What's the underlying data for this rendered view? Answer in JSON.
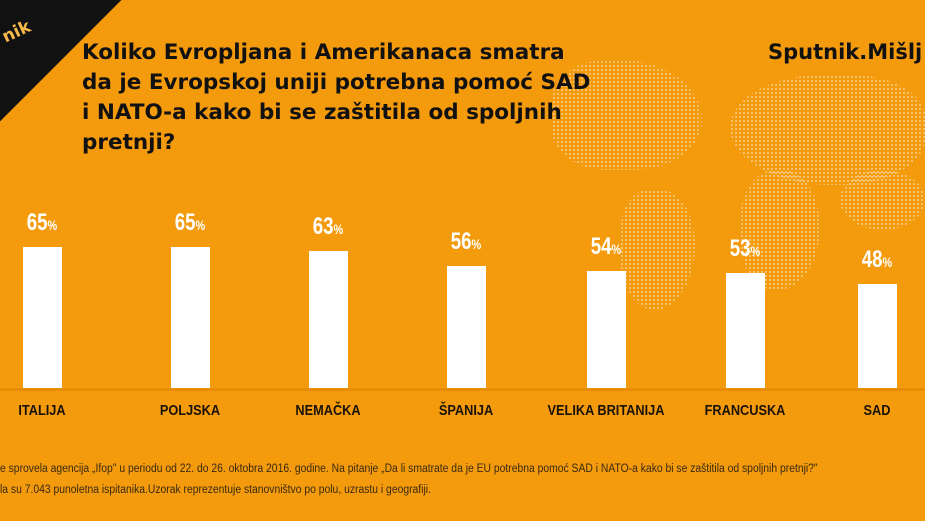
{
  "logo_text": "nik",
  "title": "Koliko Evropljana i Amerikanaca smatra da je Evropskoj uniji potrebna pomoć SAD i NATO-a kako bi se zaštitila od spoljnih pretnji?",
  "brand": "Sputnik.Mišlj",
  "colors": {
    "background": "#f39a0d",
    "bar": "#ffffff",
    "text": "#111111"
  },
  "chart_data": {
    "type": "bar",
    "categories": [
      "ITALIJA",
      "POLJSKA",
      "NEMAČKA",
      "ŠPANIJA",
      "VELIKA BRITANIJA",
      "FRANCUSKA",
      "SAD"
    ],
    "values": [
      65,
      65,
      63,
      56,
      54,
      53,
      48
    ],
    "value_labels": [
      "65",
      "65",
      "63",
      "56",
      "54",
      "53",
      "48"
    ],
    "unit": "%",
    "ylim": [
      0,
      100
    ],
    "grid": false
  },
  "footnote": {
    "line1": "e sprovela agencija „Ifop\" u periodu od 22. do 26. oktobra 2016. godine. Na pitanje „Da li smatrate da je EU potrebna pomoć SAD i NATO-a kako bi se zaštitila od spoljnih pretnji?\"",
    "line2": "la su 7.043 punoletna ispitanika.Uzorak reprezentuje stanovništvo po polu, uzrastu i geografiji."
  }
}
